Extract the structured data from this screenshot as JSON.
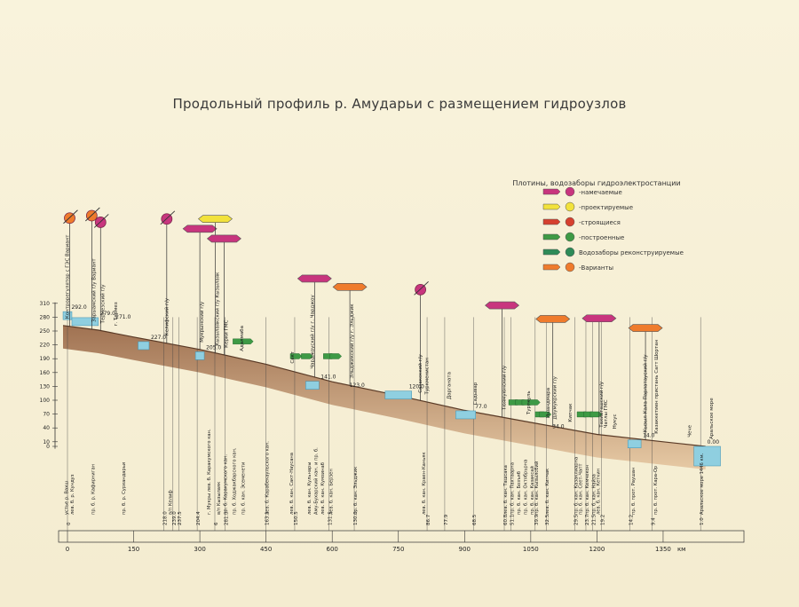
{
  "title": "Продольный профиль  р. Амударьи с размещением  гидроузлов",
  "legend": {
    "heading": "Плотины, водозаборы гидроэлектростанции",
    "items": [
      {
        "label": "-намечаемые",
        "flag_color": "#c8357e"
      },
      {
        "label": "-проектируемые",
        "flag_color": "#f2e23c"
      },
      {
        "label": "-строящиеся",
        "flag_color": "#d6402f"
      },
      {
        "label": "-построенные",
        "flag_color": "#3e9a45"
      },
      {
        "label": "Водозаборы реконструируемые",
        "flag_color": "#2e8b57"
      },
      {
        "label": "-Варианты",
        "flag_color": "#ef7b2c"
      }
    ]
  },
  "chart_data": {
    "type": "area",
    "title": "Продольный профиль р. Амударьи с размещением гидроузлов",
    "y_ticks": [
      310,
      280,
      250,
      220,
      190,
      160,
      130,
      100,
      70,
      40,
      10,
      0
    ],
    "x_ticks": [
      0,
      150,
      300,
      450,
      600,
      750,
      900,
      1050,
      1200,
      1350
    ],
    "x_unit": "км",
    "profile": [
      {
        "x": -10,
        "y": 262
      },
      {
        "x": 70,
        "y": 252
      },
      {
        "x": 150,
        "y": 237
      },
      {
        "x": 300,
        "y": 210
      },
      {
        "x": 450,
        "y": 178
      },
      {
        "x": 600,
        "y": 140
      },
      {
        "x": 750,
        "y": 110
      },
      {
        "x": 900,
        "y": 78
      },
      {
        "x": 1050,
        "y": 52
      },
      {
        "x": 1200,
        "y": 26
      },
      {
        "x": 1350,
        "y": 10
      },
      {
        "x": 1446,
        "y": 0
      }
    ],
    "level_marks": [
      {
        "x": 5,
        "value": "292.0"
      },
      {
        "x": 70,
        "value": "279.0"
      },
      {
        "x": 105,
        "value": "271.0"
      },
      {
        "x": 185,
        "value": "227.0"
      },
      {
        "x": 310,
        "value": "205.0"
      },
      {
        "x": 570,
        "value": "141.0"
      },
      {
        "x": 635,
        "value": "123.0"
      },
      {
        "x": 770,
        "value": "120.0"
      },
      {
        "x": 920,
        "value": "77.0"
      },
      {
        "x": 1095,
        "value": "34.0"
      },
      {
        "x": 1300,
        "value": "14.0"
      },
      {
        "x": 1446,
        "value": "0.00"
      }
    ],
    "reservoirs": [
      {
        "x1": -10,
        "x2": 10,
        "level": 292
      },
      {
        "x1": 10,
        "x2": 70,
        "level": 279
      },
      {
        "x1": 160,
        "x2": 185,
        "level": 227
      },
      {
        "x1": 290,
        "x2": 310,
        "level": 205
      },
      {
        "x1": 540,
        "x2": 570,
        "level": 141
      },
      {
        "x1": 720,
        "x2": 780,
        "level": 120
      },
      {
        "x1": 880,
        "x2": 925,
        "level": 77
      },
      {
        "x1": 1270,
        "x2": 1300,
        "level": 14
      },
      {
        "x1": 1420,
        "x2": 1480,
        "level": 0
      }
    ],
    "labels_top": [
      {
        "x": -5,
        "text": "Контрорегулятор с ГЭС Вариант"
      },
      {
        "x": 55,
        "text": "Зарыамский г/у Вариант"
      },
      {
        "x": 75,
        "text": "Термезский г/у"
      },
      {
        "x": 105,
        "text": "г. Термез"
      },
      {
        "x": 220,
        "text": "Келифский г/у"
      },
      {
        "x": 300,
        "text": "Мукрынский г/у"
      },
      {
        "x": 335,
        "text": "Кызылаякский г/у Кызылаяк"
      },
      {
        "x": 355,
        "text": "Керки ГМС"
      },
      {
        "x": 390,
        "text": "Адалмаба"
      },
      {
        "x": 505,
        "text": "Сакт"
      },
      {
        "x": 550,
        "text": "Чарджоуский г/у г. Чарджоу"
      },
      {
        "x": 640,
        "text": "Эльджикский г/у г. Эльджик"
      },
      {
        "x": 795,
        "text": "Сазаксккий г/у"
      },
      {
        "x": 810,
        "text": "Туркменистан"
      },
      {
        "x": 860,
        "text": "Дарганата"
      },
      {
        "x": 920,
        "text": "Садывар"
      },
      {
        "x": 985,
        "text": "Тюямуюнский г/у"
      },
      {
        "x": 1040,
        "text": "Турткуль"
      },
      {
        "x": 1085,
        "text": "Ишандмара"
      },
      {
        "x": 1100,
        "text": "Даумукрский г/у"
      },
      {
        "x": 1135,
        "text": "Кипчак"
      },
      {
        "x": 1205,
        "text": "Тахиаташский г/у"
      },
      {
        "x": 1215,
        "text": "Чатлы ГМС"
      },
      {
        "x": 1235,
        "text": "Нукус"
      },
      {
        "x": 1305,
        "text": "Кызыл-Кала Парлатауский г/у"
      },
      {
        "x": 1330,
        "text": "Казаккетиен пристань Сагт Шортан"
      },
      {
        "x": 1405,
        "text": "Чече"
      },
      {
        "x": 1455,
        "text": "Аральское море"
      }
    ],
    "labels_bottom": [
      {
        "x": -5,
        "text": "устье р. Вахш"
      },
      {
        "x": 8,
        "text": "лев. б. р. Кундуз"
      },
      {
        "x": 55,
        "text": "пр. б. р. Кафирниган"
      },
      {
        "x": 125,
        "text": "пр. б. р. Сурхандарьи"
      },
      {
        "x": 230,
        "text": "в/п Келиф"
      },
      {
        "x": 318,
        "text": "г. Мукры  лев. б. Каракумского кан."
      },
      {
        "x": 340,
        "text": "в/п Кызылаяк"
      },
      {
        "x": 355,
        "text": "пр. б. Каракумского кан."
      },
      {
        "x": 375,
        "text": "пр. б. Ходжакбарского кан."
      },
      {
        "x": 395,
        "text": "пр. б. кан. Эсеменети"
      },
      {
        "x": 450,
        "text": "лев. б. Карабекаульского кан."
      },
      {
        "x": 505,
        "text": "лев. б. кан. Сакт-Наусана"
      },
      {
        "x": 545,
        "text": "лев. б. кан. Кульнары"
      },
      {
        "x": 560,
        "text": "Аму-Бухарский кан. и пр. б."
      },
      {
        "x": 575,
        "text": "лев. б. кан. Кумзинаб"
      },
      {
        "x": 595,
        "text": "лев. б. кан. Берзен"
      },
      {
        "x": 650,
        "text": "пр. б. кан. Эльджик"
      },
      {
        "x": 805,
        "text": "лев. б. кан. Краен-Каньяк"
      },
      {
        "x": 990,
        "text": "лев. б. кан. Ташсака"
      },
      {
        "x": 1005,
        "text": "пр. б. кан. Пахтаарна"
      },
      {
        "x": 1020,
        "text": "пр. б. кан. Бозъяб"
      },
      {
        "x": 1035,
        "text": "пр. б. кан. Октябрьрна"
      },
      {
        "x": 1050,
        "text": "пр. б. кан. Казаксай"
      },
      {
        "x": 1060,
        "text": "пр. б. кан. Кызылсбий"
      },
      {
        "x": 1085,
        "text": "лев. б. кан. Кипчак"
      },
      {
        "x": 1150,
        "text": "пр. б. кан. Казаклиарна"
      },
      {
        "x": 1160,
        "text": "пр. б. кан. Сеет-Чапт"
      },
      {
        "x": 1175,
        "text": "пр. б. кан. Кемчекон"
      },
      {
        "x": 1190,
        "text": "пр. б. кан. Найза"
      },
      {
        "x": 1200,
        "text": "лев. б. кан. Кеткин"
      },
      {
        "x": 1280,
        "text": "пр. б. прот. Раушан"
      },
      {
        "x": 1330,
        "text": "пр. б. прот. Кара-Ор"
      },
      {
        "x": 1435,
        "text": "Аральское море 1446 км."
      }
    ],
    "distance_marks": [
      {
        "x": 0,
        "value": "0"
      },
      {
        "x": 239,
        "value": "239.0"
      },
      {
        "x": 252,
        "value": "237.5"
      },
      {
        "x": 218,
        "value": "218.0"
      },
      {
        "x": 294,
        "value": "204.4"
      },
      {
        "x": 334,
        "value": "6"
      },
      {
        "x": 357,
        "value": "281.3"
      },
      {
        "x": 450,
        "value": "163.1"
      },
      {
        "x": 515,
        "value": "150.5"
      },
      {
        "x": 593,
        "value": "131.5"
      },
      {
        "x": 650,
        "value": "130.0"
      },
      {
        "x": 815,
        "value": "86.7"
      },
      {
        "x": 855,
        "value": "77.9"
      },
      {
        "x": 920,
        "value": "68.5"
      },
      {
        "x": 990,
        "value": "60.8"
      },
      {
        "x": 1005,
        "value": "51.1"
      },
      {
        "x": 1060,
        "value": "39.9"
      },
      {
        "x": 1085,
        "value": "32.5"
      },
      {
        "x": 1150,
        "value": "29.5"
      },
      {
        "x": 1175,
        "value": "23.7"
      },
      {
        "x": 1190,
        "value": "21.5"
      },
      {
        "x": 1210,
        "value": "19.2"
      },
      {
        "x": 1275,
        "value": "14.2"
      },
      {
        "x": 1325,
        "value": "9.4"
      },
      {
        "x": 1435,
        "value": "1.0"
      }
    ],
    "structures": [
      {
        "x": 5,
        "status": "variant",
        "height": 92,
        "kind": "circle"
      },
      {
        "x": 55,
        "status": "variant",
        "height": 98,
        "kind": "circle"
      },
      {
        "x": 75,
        "status": "planned",
        "height": 92,
        "kind": "circle"
      },
      {
        "x": 225,
        "status": "planned",
        "height": 110,
        "kind": "circle"
      },
      {
        "x": 300,
        "status": "planned",
        "height": 110,
        "kind": "flag"
      },
      {
        "x": 335,
        "status": "projected",
        "height": 125,
        "kind": "flag"
      },
      {
        "x": 355,
        "status": "planned",
        "height": 105,
        "kind": "flag"
      },
      {
        "x": 560,
        "status": "planned",
        "height": 85,
        "kind": "flag"
      },
      {
        "x": 640,
        "status": "variant",
        "height": 85,
        "kind": "flag"
      },
      {
        "x": 800,
        "status": "planned",
        "height": 95,
        "kind": "circle"
      },
      {
        "x": 985,
        "status": "planned",
        "height": 100,
        "kind": "flag"
      },
      {
        "x": 1100,
        "status": "variant",
        "height": 95,
        "kind": "flag"
      },
      {
        "x": 1205,
        "status": "planned",
        "height": 105,
        "kind": "flag"
      },
      {
        "x": 1310,
        "status": "variant",
        "height": 100,
        "kind": "flag"
      }
    ],
    "intakes": [
      {
        "x": 375,
        "status": "built"
      },
      {
        "x": 395,
        "status": "built"
      },
      {
        "x": 505,
        "status": "built"
      },
      {
        "x": 530,
        "status": "built"
      },
      {
        "x": 580,
        "status": "built"
      },
      {
        "x": 595,
        "status": "built"
      },
      {
        "x": 1000,
        "status": "built"
      },
      {
        "x": 1015,
        "status": "built"
      },
      {
        "x": 1030,
        "status": "built"
      },
      {
        "x": 1045,
        "status": "built"
      },
      {
        "x": 1060,
        "status": "built"
      },
      {
        "x": 1070,
        "status": "built"
      },
      {
        "x": 1155,
        "status": "built"
      },
      {
        "x": 1170,
        "status": "built"
      },
      {
        "x": 1185,
        "status": "built"
      }
    ]
  }
}
